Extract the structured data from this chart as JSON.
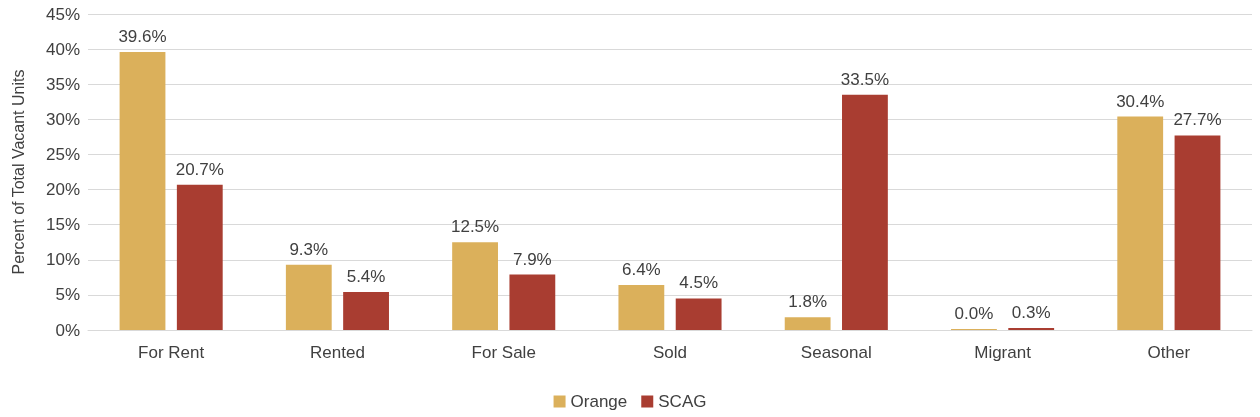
{
  "chart_data": {
    "type": "bar",
    "ylabel": "Percent of Total Vacant Units",
    "categories": [
      "For Rent",
      "Rented",
      "For Sale",
      "Sold",
      "Seasonal",
      "Migrant",
      "Other"
    ],
    "series": [
      {
        "name": "Orange",
        "color": "#dbb05b",
        "values": [
          39.6,
          9.3,
          12.5,
          6.4,
          1.8,
          0.0,
          30.4
        ],
        "value_labels": [
          "39.6%",
          "9.3%",
          "12.5%",
          "6.4%",
          "1.8%",
          "0.0%",
          "30.4%"
        ]
      },
      {
        "name": "SCAG",
        "color": "#a93d31",
        "values": [
          20.7,
          5.4,
          7.9,
          4.5,
          33.5,
          0.3,
          27.7
        ],
        "value_labels": [
          "20.7%",
          "5.4%",
          "7.9%",
          "4.5%",
          "33.5%",
          "0.3%",
          "27.7%"
        ]
      }
    ],
    "ylim": [
      0,
      45
    ],
    "yticks": [
      {
        "value": 0,
        "label": "0%"
      },
      {
        "value": 5,
        "label": "5%"
      },
      {
        "value": 10,
        "label": "10%"
      },
      {
        "value": 15,
        "label": "15%"
      },
      {
        "value": 20,
        "label": "20%"
      },
      {
        "value": 25,
        "label": "25%"
      },
      {
        "value": 30,
        "label": "30%"
      },
      {
        "value": 35,
        "label": "35%"
      },
      {
        "value": 40,
        "label": "40%"
      },
      {
        "value": 45,
        "label": "45%"
      }
    ],
    "grid": "y",
    "legend": "bottom"
  }
}
